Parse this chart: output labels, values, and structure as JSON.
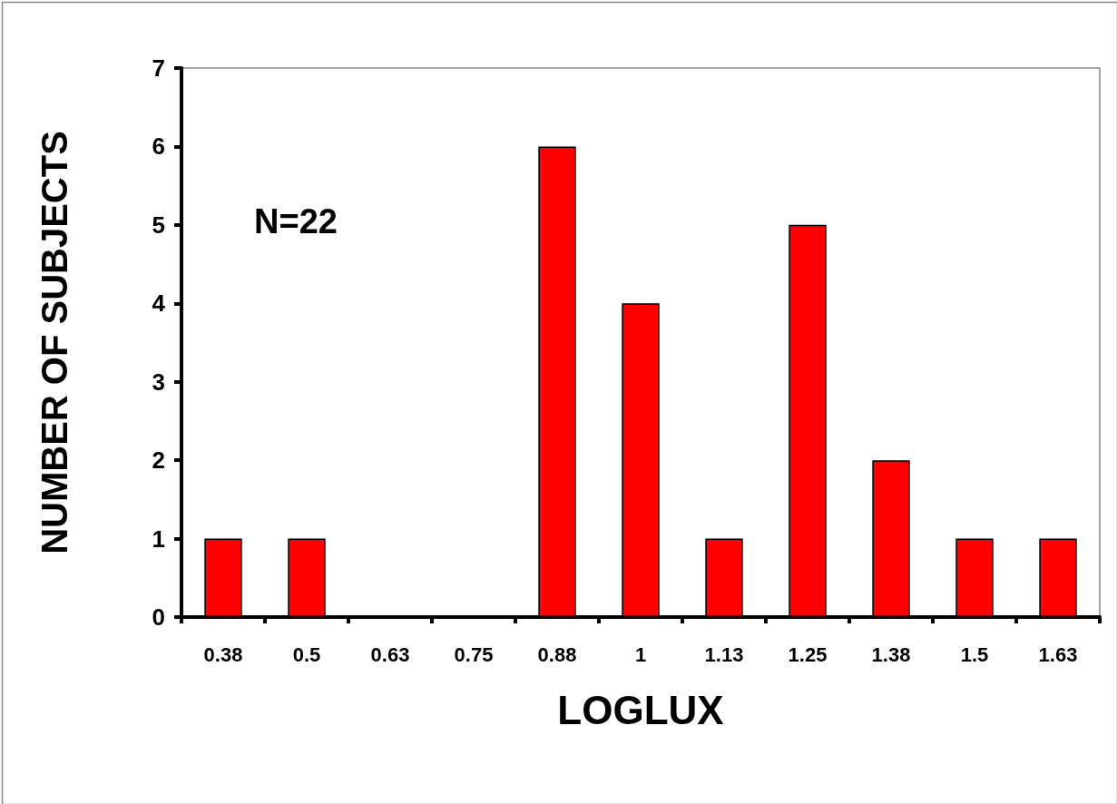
{
  "chart_data": {
    "type": "bar",
    "xlabel": "LOGLUX",
    "ylabel": "NUMBER OF SUBJECTS",
    "categories": [
      "0.38",
      "0.5",
      "0.63",
      "0.75",
      "0.88",
      "1",
      "1.13",
      "1.25",
      "1.38",
      "1.5",
      "1.63"
    ],
    "values": [
      1,
      1,
      0,
      0,
      6,
      4,
      1,
      5,
      2,
      1,
      1
    ],
    "color": "#ff0000",
    "ylim": [
      0,
      7
    ],
    "yticks": [
      0,
      1,
      2,
      3,
      4,
      5,
      6,
      7
    ],
    "grid": false,
    "annotations": [
      "N=22"
    ]
  }
}
